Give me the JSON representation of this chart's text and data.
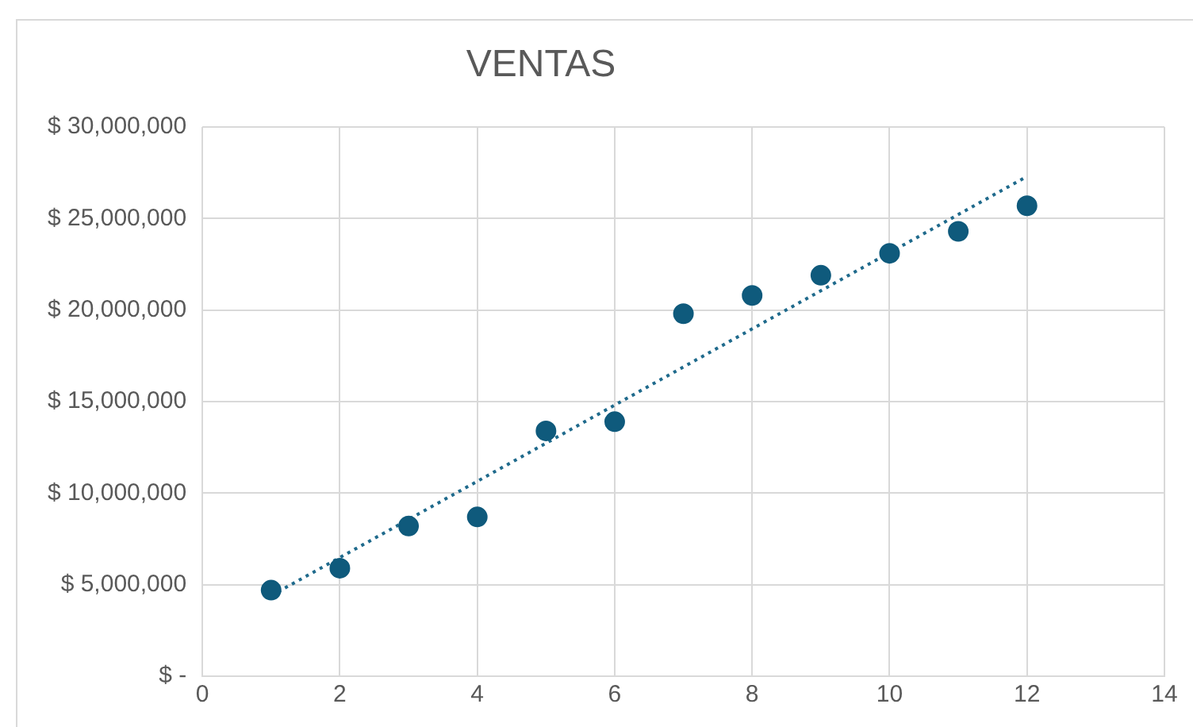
{
  "chart_data": {
    "type": "scatter",
    "title": "VENTAS",
    "marker": "circle",
    "grid": true,
    "legend": false,
    "xlim": [
      0,
      14
    ],
    "xticks": [
      0,
      2,
      4,
      6,
      8,
      10,
      12,
      14
    ],
    "ylim": [
      0,
      30000000
    ],
    "yticks": [
      {
        "value": 0,
        "label": "$ -"
      },
      {
        "value": 5000000,
        "label": "$ 5,000,000"
      },
      {
        "value": 10000000,
        "label": "$ 10,000,000"
      },
      {
        "value": 15000000,
        "label": "$ 15,000,000"
      },
      {
        "value": 20000000,
        "label": "$ 20,000,000"
      },
      {
        "value": 25000000,
        "label": "$ 25,000,000"
      },
      {
        "value": 30000000,
        "label": "$ 30,000,000"
      }
    ],
    "series": [
      {
        "type": "scatter",
        "color": "#0f5a7c",
        "x": [
          1,
          2,
          3,
          4,
          5,
          6,
          7,
          8,
          9,
          10,
          11,
          12
        ],
        "values": [
          4700000,
          5900000,
          8200000,
          8700000,
          13400000,
          13900000,
          19800000,
          20800000,
          21900000,
          23100000,
          24300000,
          25700000
        ]
      },
      {
        "type": "line",
        "color": "#1f6a8c",
        "line_style": "dotted",
        "marker": "none",
        "x": [
          1,
          12
        ],
        "values": [
          4400000,
          27300000
        ]
      }
    ]
  }
}
